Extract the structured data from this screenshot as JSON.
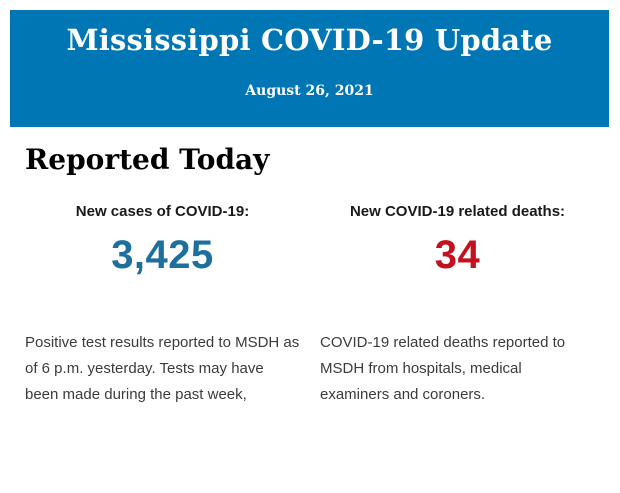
{
  "header": {
    "background": "#0076b4",
    "text_color": "#ffffff",
    "title": "Mississippi COVID-19 Update",
    "date": "August 26, 2021"
  },
  "main": {
    "heading": "Reported Today",
    "stats": [
      {
        "label": "New cases of COVID-19:",
        "value": "3,425",
        "value_color": "#1e6f9e",
        "description": "Positive test results reported to MSDH as of 6 p.m. yesterday. Tests may have been made during the past week,"
      },
      {
        "label": "New COVID-19 related deaths:",
        "value": "34",
        "value_color": "#c5101e",
        "description": "COVID-19 related deaths reported to MSDH from hospitals, medical examiners and coroners."
      }
    ]
  }
}
